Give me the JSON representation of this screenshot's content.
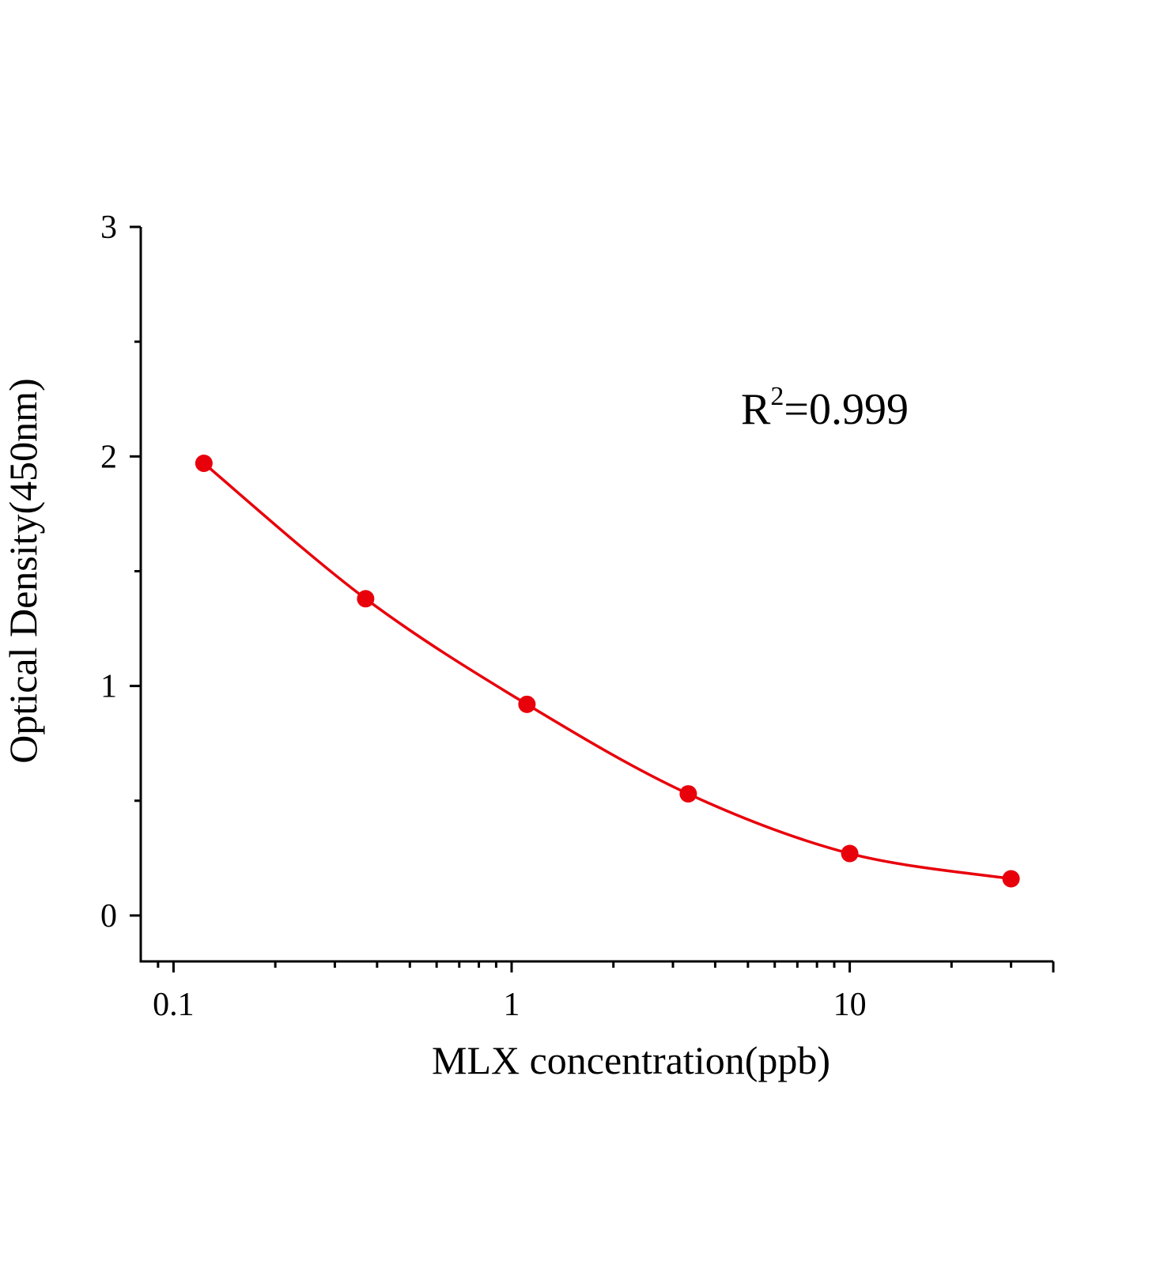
{
  "chart_data": {
    "type": "scatter",
    "xlabel": "MLX concentration(ppb)",
    "ylabel": "Optical Density(450nm)",
    "xscale": "log",
    "xlim": [
      0.08,
      40
    ],
    "ylim": [
      -0.2,
      3
    ],
    "xticks": [
      0.1,
      1,
      10
    ],
    "xtick_labels": [
      "0.1",
      "1",
      "10"
    ],
    "yticks": [
      0,
      1,
      2,
      3
    ],
    "ytick_labels": [
      "0",
      "1",
      "2",
      "3"
    ],
    "grid": false,
    "annotation": {
      "text_base": "R",
      "text_sup": "2",
      "text_rest": "=0.999"
    },
    "color": "#e8000b",
    "series": [
      {
        "x": [
          0.123,
          0.37,
          1.11,
          3.33,
          10,
          30
        ],
        "y": [
          1.97,
          1.38,
          0.92,
          0.53,
          0.27,
          0.16
        ],
        "fit": "smooth curve"
      }
    ]
  }
}
